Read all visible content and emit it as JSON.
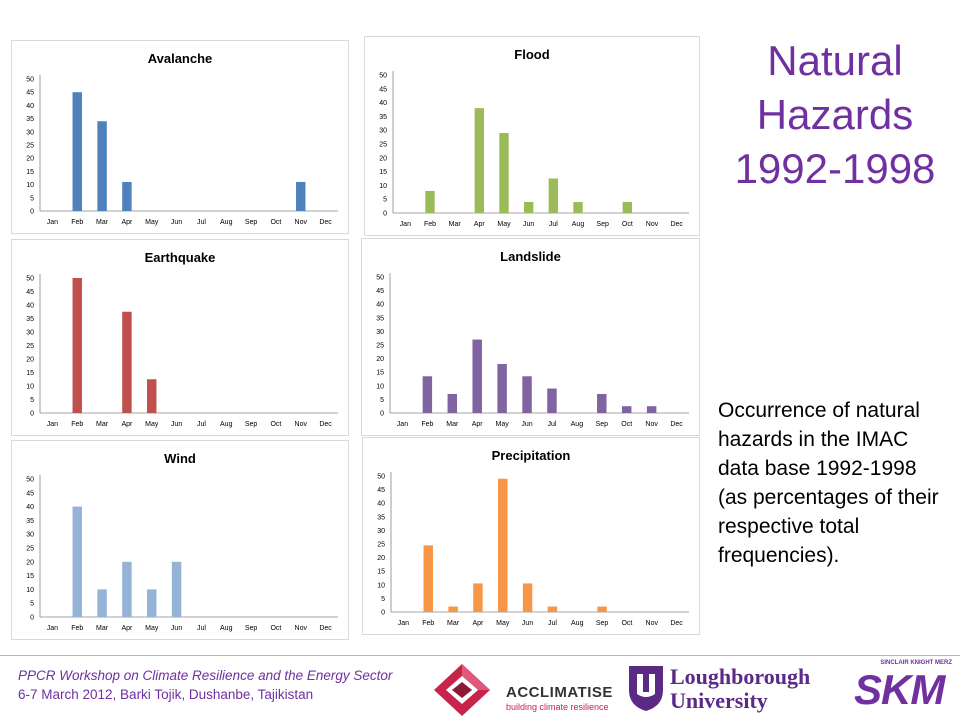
{
  "slide": {
    "title_lines": [
      "Natural",
      "Hazards",
      "1992-1998"
    ],
    "description": "Occurrence of natural hazards in the IMAC data base 1992-1998 (as percentages of their respective total frequencies).",
    "footer_line1": "PPCR Workshop on Climate Resilience and the Energy Sector",
    "footer_line2": "6-7 March 2012, Barki Tojik, Dushanbe, Tajikistan",
    "colors": {
      "title": "#7030a0",
      "footer": "#7030a0"
    }
  },
  "logos": {
    "acclimatise_name": "ACCLIMATISE",
    "acclimatise_tagline": "building climate resilience",
    "loughborough_line1": "Loughborough",
    "loughborough_line2": "University",
    "skm_top": "SINCLAIR KNIGHT MERZ",
    "skm_mark": "SKM"
  },
  "chart_data": [
    {
      "type": "bar",
      "title": "Avalanche",
      "categories": [
        "Jan",
        "Feb",
        "Mar",
        "Apr",
        "May",
        "Jun",
        "Jul",
        "Aug",
        "Sep",
        "Oct",
        "Nov",
        "Dec"
      ],
      "values": [
        0,
        45,
        34,
        11,
        0,
        0,
        0,
        0,
        0,
        0,
        11,
        0
      ],
      "ylim": [
        0,
        50
      ],
      "yticks": [
        0,
        5,
        10,
        15,
        20,
        25,
        30,
        35,
        40,
        45,
        50
      ],
      "color": "#4f81bd"
    },
    {
      "type": "bar",
      "title": "Flood",
      "categories": [
        "Jan",
        "Feb",
        "Mar",
        "Apr",
        "May",
        "Jun",
        "Jul",
        "Aug",
        "Sep",
        "Oct",
        "Nov",
        "Dec"
      ],
      "values": [
        0,
        8,
        0,
        38,
        29,
        4,
        12.5,
        4,
        0,
        4,
        0,
        0
      ],
      "ylim": [
        0,
        50
      ],
      "yticks": [
        0,
        5,
        10,
        15,
        20,
        25,
        30,
        35,
        40,
        45,
        50
      ],
      "color": "#9bbb59"
    },
    {
      "type": "bar",
      "title": "Earthquake",
      "categories": [
        "Jan",
        "Feb",
        "Mar",
        "Apr",
        "May",
        "Jun",
        "Jul",
        "Aug",
        "Sep",
        "Oct",
        "Nov",
        "Dec"
      ],
      "values": [
        0,
        50,
        0,
        37.5,
        12.5,
        0,
        0,
        0,
        0,
        0,
        0,
        0
      ],
      "ylim": [
        0,
        50
      ],
      "yticks": [
        0,
        5,
        10,
        15,
        20,
        25,
        30,
        35,
        40,
        45,
        50
      ],
      "color": "#c0504d"
    },
    {
      "type": "bar",
      "title": "Landslide",
      "categories": [
        "Jan",
        "Feb",
        "Mar",
        "Apr",
        "May",
        "Jun",
        "Jul",
        "Aug",
        "Sep",
        "Oct",
        "Nov",
        "Dec"
      ],
      "values": [
        0,
        13.5,
        7,
        27,
        18,
        13.5,
        9,
        0,
        7,
        2.5,
        2.5,
        0
      ],
      "ylim": [
        0,
        50
      ],
      "yticks": [
        0,
        5,
        10,
        15,
        20,
        25,
        30,
        35,
        40,
        45,
        50
      ],
      "color": "#8064a2"
    },
    {
      "type": "bar",
      "title": "Wind",
      "categories": [
        "Jan",
        "Feb",
        "Mar",
        "Apr",
        "May",
        "Jun",
        "Jul",
        "Aug",
        "Sep",
        "Oct",
        "Nov",
        "Dec"
      ],
      "values": [
        0,
        40,
        10,
        20,
        10,
        20,
        0,
        0,
        0,
        0,
        0,
        0
      ],
      "ylim": [
        0,
        50
      ],
      "yticks": [
        0,
        5,
        10,
        15,
        20,
        25,
        30,
        35,
        40,
        45,
        50
      ],
      "color": "#95b3d7"
    },
    {
      "type": "bar",
      "title": "Precipitation",
      "categories": [
        "Jan",
        "Feb",
        "Mar",
        "Apr",
        "May",
        "Jun",
        "Jul",
        "Aug",
        "Sep",
        "Oct",
        "Nov",
        "Dec"
      ],
      "values": [
        0,
        24.5,
        2,
        10.5,
        49,
        10.5,
        2,
        0,
        2,
        0,
        0,
        0
      ],
      "ylim": [
        0,
        50
      ],
      "yticks": [
        0,
        5,
        10,
        15,
        20,
        25,
        30,
        35,
        40,
        45,
        50
      ],
      "color": "#f79646"
    }
  ]
}
